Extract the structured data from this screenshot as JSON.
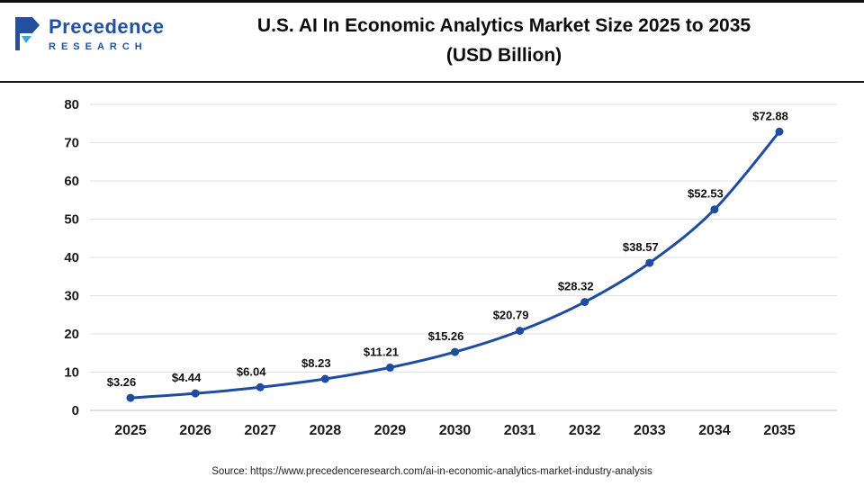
{
  "header": {
    "logo_top": "Precedence",
    "logo_bottom": "RESEARCH",
    "title_line1": "U.S. AI In Economic Analytics Market Size 2025 to 2035",
    "title_line2": "(USD Billion)"
  },
  "footer": {
    "source": "Source: https://www.precedenceresearch.com/ai-in-economic-analytics-market-industry-analysis"
  },
  "chart_data": {
    "type": "line",
    "title": "U.S. AI In Economic Analytics Market Size 2025 to 2035 (USD Billion)",
    "categories": [
      "2025",
      "2026",
      "2027",
      "2028",
      "2029",
      "2030",
      "2031",
      "2032",
      "2033",
      "2034",
      "2035"
    ],
    "series": [
      {
        "name": "U.S. AI in Economic Analytics Market Size (USD Billion)",
        "values": [
          3.26,
          4.44,
          6.04,
          8.23,
          11.21,
          15.26,
          20.79,
          28.32,
          38.57,
          52.53,
          72.88
        ],
        "labels": [
          "$3.26",
          "$4.44",
          "$6.04",
          "$8.23",
          "$11.21",
          "$15.26",
          "$20.79",
          "$28.32",
          "$38.57",
          "$52.53",
          "$72.88"
        ]
      }
    ],
    "xlabel": "",
    "ylabel": "",
    "ylim": [
      0,
      80
    ],
    "ytick_step": 10,
    "grid": true,
    "legend": "none",
    "line_color": "#1e4da0",
    "marker": "circle"
  }
}
